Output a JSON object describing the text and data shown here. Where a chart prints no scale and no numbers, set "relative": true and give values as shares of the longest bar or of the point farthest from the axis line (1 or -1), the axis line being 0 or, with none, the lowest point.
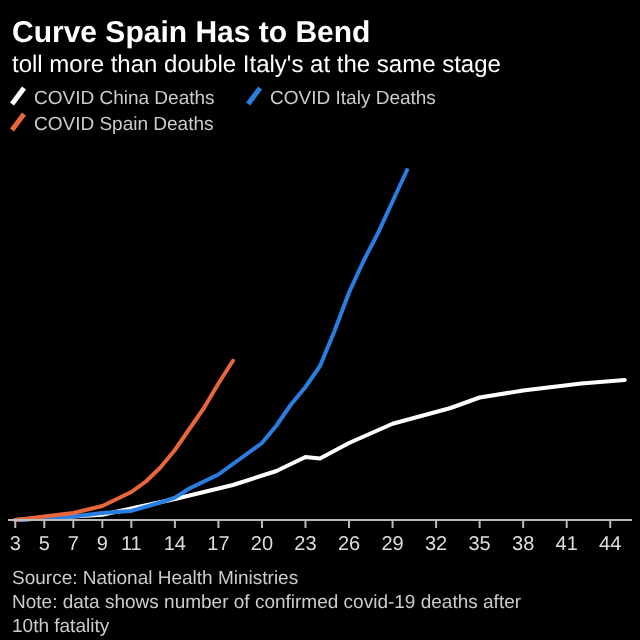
{
  "chart_data": {
    "type": "line",
    "title": "Curve Spain Has to Bend",
    "subtitle": "toll more than double Italy's at the same stage",
    "relative": true,
    "xlim": [
      2.5,
      45.5
    ],
    "xticks": [
      3,
      5,
      7,
      9,
      11,
      14,
      17,
      20,
      23,
      26,
      29,
      32,
      35,
      38,
      41,
      44
    ],
    "legend": "top left",
    "grid": false,
    "line_style": "solid",
    "marker": "none",
    "series": [
      {
        "name": "COVID China Deaths",
        "color": "#ffffff",
        "x": [
          3,
          9,
          14,
          18,
          21,
          23,
          24,
          26,
          29,
          33,
          35,
          38,
          42,
          45
        ],
        "values": [
          0,
          0.015,
          0.06,
          0.1,
          0.14,
          0.18,
          0.176,
          0.22,
          0.275,
          0.32,
          0.35,
          0.37,
          0.39,
          0.4
        ]
      },
      {
        "name": "COVID Italy Deaths",
        "color": "#2a7de1",
        "x": [
          3,
          5,
          7,
          9,
          11,
          13,
          14,
          15,
          16,
          17,
          18,
          19,
          20,
          21,
          22,
          23,
          24,
          25,
          26,
          27,
          28,
          29,
          30
        ],
        "values": [
          0,
          0.005,
          0.01,
          0.02,
          0.026,
          0.05,
          0.064,
          0.09,
          0.11,
          0.13,
          0.16,
          0.19,
          0.22,
          0.27,
          0.33,
          0.38,
          0.44,
          0.54,
          0.65,
          0.74,
          0.82,
          0.91,
          1
        ]
      },
      {
        "name": "COVID Spain Deaths",
        "color": "#e8663d",
        "x": [
          3,
          5,
          7,
          9,
          11,
          12,
          13,
          14,
          15,
          16,
          17,
          18
        ],
        "values": [
          0,
          0.01,
          0.02,
          0.04,
          0.08,
          0.11,
          0.15,
          0.2,
          0.26,
          0.32,
          0.39,
          0.455
        ]
      }
    ],
    "annotations": [
      "Source: National Health Ministries",
      "Note: data shows number of confirmed covid-19 deaths after 10th fatality"
    ]
  }
}
